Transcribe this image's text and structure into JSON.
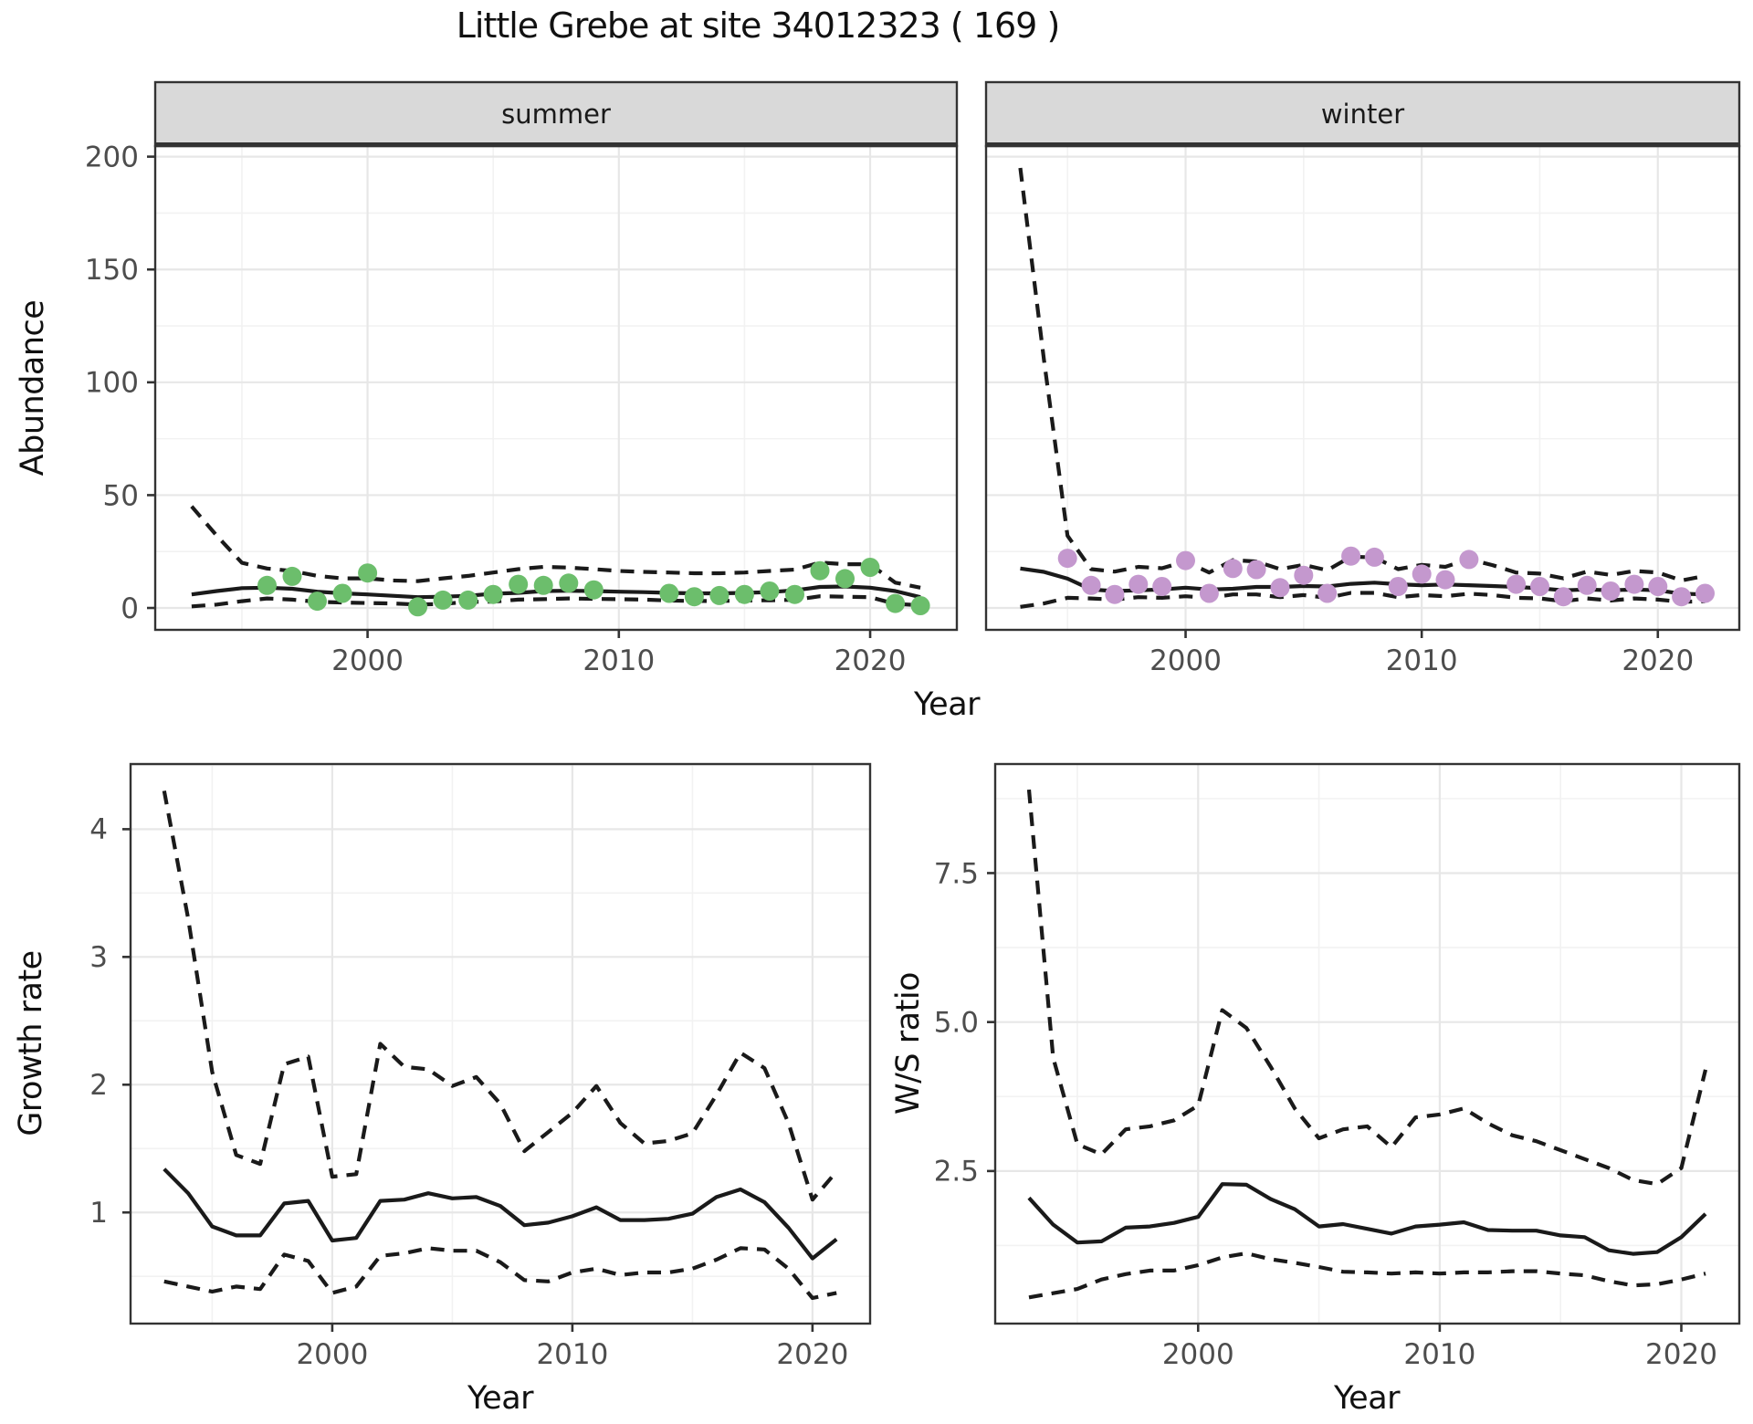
{
  "title": "Little Grebe at site 34012323 ( 169 )",
  "axis_titles": {
    "abundance_y": "Abundance",
    "top_x": "Year",
    "growth_y": "Growth rate",
    "growth_x": "Year",
    "ws_y": "W/S ratio",
    "ws_x": "Year"
  },
  "colors": {
    "summer_point": "#6cbe6c",
    "winter_point": "#c498ce",
    "line": "#1a1a1a",
    "grid_major": "#e7e7e7",
    "grid_minor": "#f2f2f2",
    "strip_bg": "#d9d9d9",
    "panel_border": "#333333",
    "tick_label": "#4d4d4d"
  },
  "chart_data": [
    {
      "id": "abundance-summer",
      "type": "line+scatter",
      "facet_label": "summer",
      "xlim": [
        1991.55,
        2023.45
      ],
      "ylim": [
        -9.7,
        204.7
      ],
      "xticks": {
        "major": [
          2000,
          2010,
          2020
        ],
        "minor": [
          1995,
          2005,
          2015
        ],
        "labels": [
          "2000",
          "2010",
          "2020"
        ]
      },
      "yticks": {
        "major": [
          0,
          50,
          100,
          150,
          200
        ],
        "minor": [
          25,
          75,
          125,
          175
        ],
        "labels": [
          "0",
          "50",
          "100",
          "150",
          "200"
        ]
      },
      "years": [
        1993,
        1994,
        1995,
        1996,
        1997,
        1998,
        1999,
        2000,
        2001,
        2002,
        2003,
        2004,
        2005,
        2006,
        2007,
        2008,
        2009,
        2010,
        2011,
        2012,
        2013,
        2014,
        2015,
        2016,
        2017,
        2018,
        2019,
        2020,
        2021,
        2022
      ],
      "series": [
        {
          "name": "median",
          "style": "solid",
          "y": [
            6,
            7.5,
            8.8,
            9,
            8.5,
            7.2,
            6.5,
            6,
            5.4,
            4.8,
            5,
            5.4,
            6.3,
            6.7,
            7.5,
            7.6,
            7.5,
            7.2,
            7,
            6.7,
            6.5,
            6.5,
            6.7,
            7,
            7.8,
            9.3,
            9.5,
            9,
            7.5,
            4.8
          ]
        },
        {
          "name": "upper_ci",
          "style": "dashed",
          "y": [
            45,
            32,
            20,
            17.5,
            16.4,
            14.2,
            13.1,
            13.1,
            12.2,
            11.9,
            13.1,
            14.2,
            15.7,
            17.2,
            18.2,
            17.9,
            17.2,
            16.4,
            16,
            15.7,
            15.4,
            15.4,
            15.7,
            16.4,
            17,
            20.1,
            19.4,
            19.4,
            11.2,
            9
          ]
        },
        {
          "name": "lower_ci",
          "style": "dashed",
          "y": [
            0.7,
            1.5,
            3,
            4.2,
            3.7,
            2.7,
            2.4,
            2.2,
            2,
            1.5,
            1.8,
            2.7,
            2.8,
            3.7,
            3.9,
            4.2,
            4,
            3.9,
            3.7,
            3.3,
            3.1,
            3.1,
            3.3,
            3.4,
            3.6,
            5.2,
            5,
            4.8,
            1.8,
            1.2
          ]
        }
      ],
      "points": {
        "name": "observed-counts",
        "color_key": "summer_point",
        "x": [
          1996,
          1997,
          1998,
          1999,
          2000,
          2002,
          2003,
          2004,
          2005,
          2006,
          2007,
          2008,
          2009,
          2012,
          2013,
          2014,
          2015,
          2016,
          2017,
          2018,
          2019,
          2020,
          2021,
          2022
        ],
        "y": [
          10,
          14,
          3,
          6.5,
          15.5,
          0.5,
          3.5,
          3.5,
          6,
          10.5,
          10,
          11,
          8,
          6.5,
          5,
          5.5,
          6,
          7.5,
          6,
          16.5,
          13,
          18,
          2,
          1
        ]
      }
    },
    {
      "id": "abundance-winter",
      "type": "line+scatter",
      "facet_label": "winter",
      "xlim": [
        1991.55,
        2023.45
      ],
      "ylim": [
        -9.7,
        204.7
      ],
      "xticks": {
        "major": [
          2000,
          2010,
          2020
        ],
        "minor": [
          1995,
          2005,
          2015
        ],
        "labels": [
          "2000",
          "2010",
          "2020"
        ]
      },
      "yticks": {
        "major": [
          0,
          50,
          100,
          150,
          200
        ],
        "minor": [
          25,
          75,
          125,
          175
        ],
        "labels": []
      },
      "years": [
        1993,
        1994,
        1995,
        1996,
        1997,
        1998,
        1999,
        2000,
        2001,
        2002,
        2003,
        2004,
        2005,
        2006,
        2007,
        2008,
        2009,
        2010,
        2011,
        2012,
        2013,
        2014,
        2015,
        2016,
        2017,
        2018,
        2019,
        2020,
        2021,
        2022
      ],
      "series": [
        {
          "name": "median",
          "style": "solid",
          "y": [
            17.5,
            16,
            13,
            8.2,
            7.5,
            7.8,
            8.2,
            9,
            8.2,
            8.5,
            9.3,
            9.3,
            9.7,
            9.5,
            10.7,
            11.2,
            10.5,
            10.1,
            10.4,
            10.1,
            9.7,
            9.3,
            8.7,
            7.8,
            8.2,
            7.8,
            8.2,
            7.8,
            6.3,
            6
          ]
        },
        {
          "name": "upper_ci",
          "style": "dashed",
          "y": [
            195,
            110,
            32,
            17.2,
            16.1,
            18.2,
            17.6,
            20.6,
            15.7,
            21.2,
            20.6,
            17.2,
            19.1,
            16.7,
            22.7,
            22.4,
            17.2,
            19.1,
            18.2,
            21.6,
            19,
            15.7,
            15.2,
            13.1,
            16.1,
            14.6,
            16.4,
            15.7,
            12.2,
            14.2
          ]
        },
        {
          "name": "lower_ci",
          "style": "dashed",
          "y": [
            0.5,
            2,
            4.5,
            4.2,
            3.7,
            4.8,
            4.5,
            5.2,
            4.5,
            6,
            6,
            4.8,
            5.7,
            4.5,
            6.7,
            6.7,
            4.8,
            5.7,
            5.2,
            6.3,
            5.7,
            4.5,
            4.2,
            3,
            4.2,
            3.3,
            4.2,
            3.7,
            2.7,
            3
          ]
        }
      ],
      "points": {
        "name": "observed-counts",
        "color_key": "winter_point",
        "x": [
          1995,
          1996,
          1997,
          1998,
          1999,
          2000,
          2001,
          2002,
          2003,
          2004,
          2005,
          2006,
          2007,
          2008,
          2009,
          2010,
          2011,
          2012,
          2014,
          2015,
          2016,
          2017,
          2018,
          2019,
          2020,
          2021,
          2022
        ],
        "y": [
          22,
          10,
          6,
          10.5,
          9.5,
          21,
          6.5,
          17.5,
          17,
          9,
          14.5,
          6.5,
          23,
          22.5,
          9.5,
          15,
          12.5,
          21.5,
          10.5,
          9.5,
          5,
          10,
          7.5,
          10.5,
          9.5,
          5,
          6.5
        ]
      }
    },
    {
      "id": "growth-rate",
      "type": "line",
      "facet_label": null,
      "xlim": [
        1991.6,
        2022.4
      ],
      "ylim": [
        0.13,
        4.51
      ],
      "xticks": {
        "major": [
          2000,
          2010,
          2020
        ],
        "minor": [
          1995,
          2005,
          2015
        ],
        "labels": [
          "2000",
          "2010",
          "2020"
        ]
      },
      "yticks": {
        "major": [
          1,
          2,
          3,
          4
        ],
        "minor": [
          0.5,
          1.5,
          2.5,
          3.5,
          4.5
        ],
        "labels": [
          "1",
          "2",
          "3",
          "4"
        ]
      },
      "years": [
        1993,
        1994,
        1995,
        1996,
        1997,
        1998,
        1999,
        2000,
        2001,
        2002,
        2003,
        2004,
        2005,
        2006,
        2007,
        2008,
        2009,
        2010,
        2011,
        2012,
        2013,
        2014,
        2015,
        2016,
        2017,
        2018,
        2019,
        2020,
        2021
      ],
      "series": [
        {
          "name": "median",
          "style": "solid",
          "y": [
            1.34,
            1.15,
            0.89,
            0.82,
            0.82,
            1.07,
            1.09,
            0.78,
            0.8,
            1.09,
            1.1,
            1.15,
            1.11,
            1.12,
            1.05,
            0.9,
            0.92,
            0.97,
            1.04,
            0.94,
            0.94,
            0.95,
            0.99,
            1.12,
            1.18,
            1.08,
            0.88,
            0.64,
            0.79
          ]
        },
        {
          "name": "upper_ci",
          "style": "dashed",
          "y": [
            4.3,
            3.3,
            2.1,
            1.45,
            1.38,
            2.16,
            2.22,
            1.28,
            1.3,
            2.32,
            2.14,
            2.12,
            1.99,
            2.06,
            1.85,
            1.48,
            1.63,
            1.78,
            1.99,
            1.7,
            1.54,
            1.56,
            1.62,
            1.92,
            2.25,
            2.13,
            1.7,
            1.1,
            1.32
          ]
        },
        {
          "name": "lower_ci",
          "style": "dashed",
          "y": [
            0.46,
            0.42,
            0.38,
            0.42,
            0.4,
            0.67,
            0.62,
            0.37,
            0.42,
            0.66,
            0.68,
            0.72,
            0.7,
            0.7,
            0.61,
            0.47,
            0.46,
            0.53,
            0.56,
            0.51,
            0.53,
            0.53,
            0.56,
            0.63,
            0.72,
            0.71,
            0.56,
            0.33,
            0.37
          ]
        }
      ],
      "points": null
    },
    {
      "id": "ws-ratio",
      "type": "line",
      "facet_label": null,
      "xlim": [
        1991.6,
        2022.4
      ],
      "ylim": [
        -0.06,
        9.33
      ],
      "xticks": {
        "major": [
          2000,
          2010,
          2020
        ],
        "minor": [
          1995,
          2005,
          2015
        ],
        "labels": [
          "2000",
          "2010",
          "2020"
        ]
      },
      "yticks": {
        "major": [
          2.5,
          5.0,
          7.5
        ],
        "minor": [
          1.25,
          3.75,
          6.25,
          8.75
        ],
        "labels": [
          "2.5",
          "5.0",
          "7.5"
        ]
      },
      "years": [
        1993,
        1994,
        1995,
        1996,
        1997,
        1998,
        1999,
        2000,
        2001,
        2002,
        2003,
        2004,
        2005,
        2006,
        2007,
        2008,
        2009,
        2010,
        2011,
        2012,
        2013,
        2014,
        2015,
        2016,
        2017,
        2018,
        2019,
        2020,
        2021
      ],
      "series": [
        {
          "name": "median",
          "style": "solid",
          "y": [
            2.05,
            1.6,
            1.3,
            1.32,
            1.55,
            1.57,
            1.63,
            1.73,
            2.28,
            2.27,
            2.03,
            1.86,
            1.57,
            1.61,
            1.53,
            1.45,
            1.57,
            1.6,
            1.64,
            1.51,
            1.5,
            1.5,
            1.42,
            1.39,
            1.17,
            1.11,
            1.14,
            1.39,
            1.78
          ]
        },
        {
          "name": "upper_ci",
          "style": "dashed",
          "y": [
            8.9,
            4.4,
            2.95,
            2.78,
            3.2,
            3.25,
            3.35,
            3.6,
            5.2,
            4.9,
            4.25,
            3.55,
            3.05,
            3.2,
            3.25,
            2.9,
            3.4,
            3.45,
            3.55,
            3.3,
            3.1,
            3.0,
            2.85,
            2.7,
            2.55,
            2.35,
            2.28,
            2.55,
            4.2
          ]
        },
        {
          "name": "lower_ci",
          "style": "dashed",
          "y": [
            0.38,
            0.45,
            0.52,
            0.68,
            0.77,
            0.83,
            0.83,
            0.92,
            1.05,
            1.12,
            1.02,
            0.96,
            0.89,
            0.81,
            0.8,
            0.78,
            0.8,
            0.78,
            0.8,
            0.8,
            0.82,
            0.82,
            0.78,
            0.75,
            0.65,
            0.58,
            0.6,
            0.68,
            0.78
          ]
        }
      ],
      "points": null
    }
  ]
}
